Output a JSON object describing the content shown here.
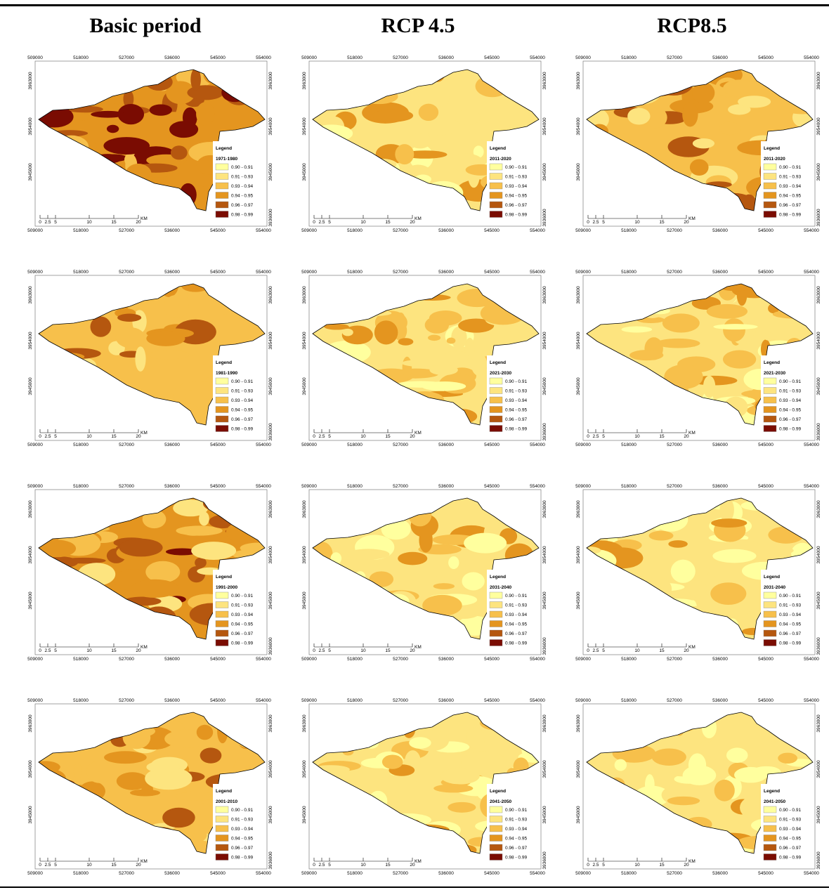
{
  "headers": [
    "Basic period",
    "RCP 4.5",
    "RCP8.5"
  ],
  "map_axes": {
    "x_labels": [
      "509000",
      "518000",
      "527000",
      "536000",
      "545000",
      "554000"
    ],
    "y_labels_left": [
      "3963000",
      "3954000",
      "3945000"
    ],
    "y_labels_right": [
      "3963000",
      "3954000",
      "3945000",
      "3936000"
    ]
  },
  "scale_bar": {
    "labels": [
      "0",
      "2.5",
      "5",
      "10",
      "15",
      "20"
    ],
    "unit": "KM"
  },
  "legend": {
    "title": "Legend",
    "classes": [
      {
        "label": "0.90 - 0.91",
        "color": "#ffff9e"
      },
      {
        "label": "0.91 - 0.93",
        "color": "#fde47f"
      },
      {
        "label": "0.93 - 0.94",
        "color": "#f7c04b"
      },
      {
        "label": "0.94 - 0.95",
        "color": "#e4951f"
      },
      {
        "label": "0.96 - 0.97",
        "color": "#b5570f"
      },
      {
        "label": "0.98 - 0.99",
        "color": "#7a0c02"
      }
    ]
  },
  "maps": [
    {
      "period": "1971-1980"
    },
    {
      "period": "2011-2020"
    },
    {
      "period": "2011-2020"
    },
    {
      "period": "1981-1990"
    },
    {
      "period": "2021-2030"
    },
    {
      "period": "2021-2030"
    },
    {
      "period": "1991-2000"
    },
    {
      "period": "2031-2040"
    },
    {
      "period": "2031-2040"
    },
    {
      "period": "2001-2010"
    },
    {
      "period": "2041-2050"
    },
    {
      "period": "2041-2050"
    }
  ]
}
